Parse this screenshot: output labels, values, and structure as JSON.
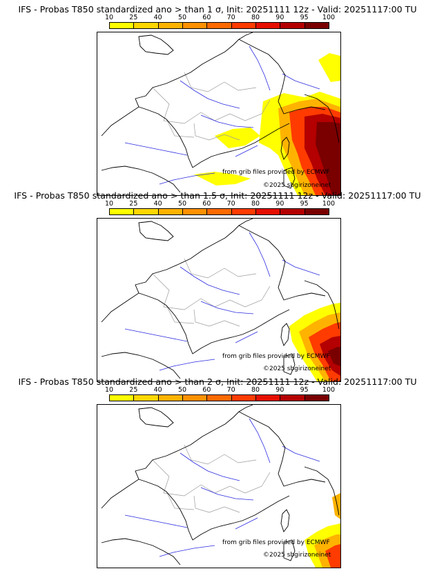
{
  "panels": [
    {
      "title": "IFS - Probas T850  standardized ano > than 1 σ, Init: 20251111 12z - Valid: 20251117:00 TU",
      "threshold": "1 σ",
      "credit": "from grib files provided by ECMWF",
      "copyright": "©2025 sbgirizoneinet"
    },
    {
      "title": "IFS - Probas T850  standardized ano > than 1.5 σ, Init: 20251111 12z - Valid: 20251117:00 TU",
      "threshold": "1.5 σ",
      "credit": "from grib files provided by ECMWF",
      "copyright": "©2025 sbgirizoneinet"
    },
    {
      "title": "IFS - Probas T850  standardized ano > than 2 σ, Init: 20251111 12z - Valid: 20251117:00 TU",
      "threshold": "2 σ",
      "credit": "from grib files provided by ECMWF",
      "copyright": "©2025 sbgirizoneinet"
    }
  ],
  "colorbar": {
    "ticks": [
      "10",
      "25",
      "40",
      "50",
      "60",
      "70",
      "80",
      "90",
      "95",
      "100"
    ],
    "colors": [
      "#ffff00",
      "#ffd700",
      "#ffb300",
      "#ff9100",
      "#ff6a00",
      "#ff3b00",
      "#e60f00",
      "#b40000",
      "#7a0000"
    ]
  },
  "map_colors": {
    "land_border": "#000000",
    "region_border": "#9a9a9a",
    "river": "#2a2ae0"
  }
}
